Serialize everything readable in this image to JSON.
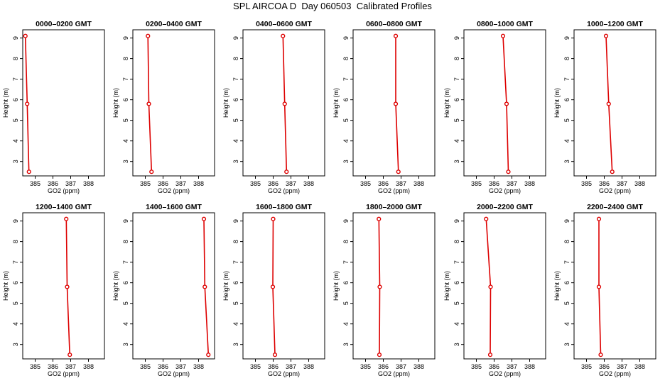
{
  "figure": {
    "title": "SPL AIRCOA D  Day 060503  Calibrated Profiles"
  },
  "chart_data": [
    {
      "type": "line",
      "title": "0000–0200 GMT",
      "xlabel": "GO2 (ppm)",
      "ylabel": "Height (m)",
      "xlim": [
        384.3,
        388.9
      ],
      "ylim": [
        2.3,
        9.4
      ],
      "xticks": [
        385,
        386,
        387,
        388
      ],
      "yticks": [
        3,
        4,
        5,
        6,
        7,
        8,
        9
      ],
      "x_tick_labels": [
        "385",
        "386",
        "387",
        "388"
      ],
      "y_tick_labels": [
        "3",
        "4",
        "5",
        "6",
        "7",
        "8",
        "9"
      ],
      "series": [
        {
          "x": [
            384.45,
            384.55,
            384.65
          ],
          "y": [
            9.1,
            5.8,
            2.5
          ]
        }
      ],
      "color": "#dd0000",
      "marker": "open-circle"
    },
    {
      "type": "line",
      "title": "0200–0400 GMT",
      "xlabel": "GO2 (ppm)",
      "ylabel": "Height (m)",
      "xlim": [
        384.3,
        388.9
      ],
      "ylim": [
        2.3,
        9.4
      ],
      "xticks": [
        385,
        386,
        387,
        388
      ],
      "yticks": [
        3,
        4,
        5,
        6,
        7,
        8,
        9
      ],
      "x_tick_labels": [
        "385",
        "386",
        "387",
        "388"
      ],
      "y_tick_labels": [
        "3",
        "4",
        "5",
        "6",
        "7",
        "8",
        "9"
      ],
      "series": [
        {
          "x": [
            385.15,
            385.2,
            385.35
          ],
          "y": [
            9.1,
            5.8,
            2.5
          ]
        }
      ],
      "color": "#dd0000",
      "marker": "open-circle"
    },
    {
      "type": "line",
      "title": "0400–0600 GMT",
      "xlabel": "GO2 (ppm)",
      "ylabel": "Height (m)",
      "xlim": [
        384.3,
        388.9
      ],
      "ylim": [
        2.3,
        9.4
      ],
      "xticks": [
        385,
        386,
        387,
        388
      ],
      "yticks": [
        3,
        4,
        5,
        6,
        7,
        8,
        9
      ],
      "x_tick_labels": [
        "385",
        "386",
        "387",
        "388"
      ],
      "y_tick_labels": [
        "3",
        "4",
        "5",
        "6",
        "7",
        "8",
        "9"
      ],
      "series": [
        {
          "x": [
            386.55,
            386.65,
            386.75
          ],
          "y": [
            9.1,
            5.8,
            2.5
          ]
        }
      ],
      "color": "#dd0000",
      "marker": "open-circle"
    },
    {
      "type": "line",
      "title": "0600–0800 GMT",
      "xlabel": "GO2 (ppm)",
      "ylabel": "Height (m)",
      "xlim": [
        384.3,
        388.9
      ],
      "ylim": [
        2.3,
        9.4
      ],
      "xticks": [
        385,
        386,
        387,
        388
      ],
      "yticks": [
        3,
        4,
        5,
        6,
        7,
        8,
        9
      ],
      "x_tick_labels": [
        "385",
        "386",
        "387",
        "388"
      ],
      "y_tick_labels": [
        "3",
        "4",
        "5",
        "6",
        "7",
        "8",
        "9"
      ],
      "series": [
        {
          "x": [
            386.7,
            386.7,
            386.85
          ],
          "y": [
            9.1,
            5.8,
            2.5
          ]
        }
      ],
      "color": "#dd0000",
      "marker": "open-circle"
    },
    {
      "type": "line",
      "title": "0800–1000 GMT",
      "xlabel": "GO2 (ppm)",
      "ylabel": "Height (m)",
      "xlim": [
        384.3,
        388.9
      ],
      "ylim": [
        2.3,
        9.4
      ],
      "xticks": [
        385,
        386,
        387,
        388
      ],
      "yticks": [
        3,
        4,
        5,
        6,
        7,
        8,
        9
      ],
      "x_tick_labels": [
        "385",
        "386",
        "387",
        "388"
      ],
      "y_tick_labels": [
        "3",
        "4",
        "5",
        "6",
        "7",
        "8",
        "9"
      ],
      "series": [
        {
          "x": [
            386.5,
            386.7,
            386.8
          ],
          "y": [
            9.1,
            5.8,
            2.5
          ]
        }
      ],
      "color": "#dd0000",
      "marker": "open-circle"
    },
    {
      "type": "line",
      "title": "1000–1200 GMT",
      "xlabel": "GO2 (ppm)",
      "ylabel": "Height (m)",
      "xlim": [
        384.3,
        388.9
      ],
      "ylim": [
        2.3,
        9.4
      ],
      "xticks": [
        385,
        386,
        387,
        388
      ],
      "yticks": [
        3,
        4,
        5,
        6,
        7,
        8,
        9
      ],
      "x_tick_labels": [
        "385",
        "386",
        "387",
        "388"
      ],
      "y_tick_labels": [
        "3",
        "4",
        "5",
        "6",
        "7",
        "8",
        "9"
      ],
      "series": [
        {
          "x": [
            386.1,
            386.25,
            386.45
          ],
          "y": [
            9.1,
            5.8,
            2.5
          ]
        }
      ],
      "color": "#dd0000",
      "marker": "open-circle"
    },
    {
      "type": "line",
      "title": "1200–1400 GMT",
      "xlabel": "GO2 (ppm)",
      "ylabel": "Height (m)",
      "xlim": [
        384.3,
        388.9
      ],
      "ylim": [
        2.3,
        9.4
      ],
      "xticks": [
        385,
        386,
        387,
        388
      ],
      "yticks": [
        3,
        4,
        5,
        6,
        7,
        8,
        9
      ],
      "x_tick_labels": [
        "385",
        "386",
        "387",
        "388"
      ],
      "y_tick_labels": [
        "3",
        "4",
        "5",
        "6",
        "7",
        "8",
        "9"
      ],
      "series": [
        {
          "x": [
            386.75,
            386.8,
            386.95
          ],
          "y": [
            9.1,
            5.8,
            2.5
          ]
        }
      ],
      "color": "#dd0000",
      "marker": "open-circle"
    },
    {
      "type": "line",
      "title": "1400–1600 GMT",
      "xlabel": "GO2 (ppm)",
      "ylabel": "Height (m)",
      "xlim": [
        384.3,
        388.9
      ],
      "ylim": [
        2.3,
        9.4
      ],
      "xticks": [
        385,
        386,
        387,
        388
      ],
      "yticks": [
        3,
        4,
        5,
        6,
        7,
        8,
        9
      ],
      "x_tick_labels": [
        "385",
        "386",
        "387",
        "388"
      ],
      "y_tick_labels": [
        "3",
        "4",
        "5",
        "6",
        "7",
        "8",
        "9"
      ],
      "series": [
        {
          "x": [
            388.3,
            388.35,
            388.55
          ],
          "y": [
            9.1,
            5.8,
            2.5
          ]
        }
      ],
      "color": "#dd0000",
      "marker": "open-circle"
    },
    {
      "type": "line",
      "title": "1600–1800 GMT",
      "xlabel": "GO2 (ppm)",
      "ylabel": "Height (m)",
      "xlim": [
        384.3,
        388.9
      ],
      "ylim": [
        2.3,
        9.4
      ],
      "xticks": [
        385,
        386,
        387,
        388
      ],
      "yticks": [
        3,
        4,
        5,
        6,
        7,
        8,
        9
      ],
      "x_tick_labels": [
        "385",
        "386",
        "387",
        "388"
      ],
      "y_tick_labels": [
        "3",
        "4",
        "5",
        "6",
        "7",
        "8",
        "9"
      ],
      "series": [
        {
          "x": [
            386.0,
            385.98,
            386.1
          ],
          "y": [
            9.1,
            5.8,
            2.5
          ]
        }
      ],
      "color": "#dd0000",
      "marker": "open-circle"
    },
    {
      "type": "line",
      "title": "1800–2000 GMT",
      "xlabel": "GO2 (ppm)",
      "ylabel": "Height (m)",
      "xlim": [
        384.3,
        388.9
      ],
      "ylim": [
        2.3,
        9.4
      ],
      "xticks": [
        385,
        386,
        387,
        388
      ],
      "yticks": [
        3,
        4,
        5,
        6,
        7,
        8,
        9
      ],
      "x_tick_labels": [
        "385",
        "386",
        "387",
        "388"
      ],
      "y_tick_labels": [
        "3",
        "4",
        "5",
        "6",
        "7",
        "8",
        "9"
      ],
      "series": [
        {
          "x": [
            385.75,
            385.8,
            385.78
          ],
          "y": [
            9.1,
            5.8,
            2.5
          ]
        }
      ],
      "color": "#dd0000",
      "marker": "open-circle"
    },
    {
      "type": "line",
      "title": "2000–2200 GMT",
      "xlabel": "GO2 (ppm)",
      "ylabel": "Height (m)",
      "xlim": [
        384.3,
        388.9
      ],
      "ylim": [
        2.3,
        9.4
      ],
      "xticks": [
        385,
        386,
        387,
        388
      ],
      "yticks": [
        3,
        4,
        5,
        6,
        7,
        8,
        9
      ],
      "x_tick_labels": [
        "385",
        "386",
        "387",
        "388"
      ],
      "y_tick_labels": [
        "3",
        "4",
        "5",
        "6",
        "7",
        "8",
        "9"
      ],
      "series": [
        {
          "x": [
            385.55,
            385.8,
            385.78
          ],
          "y": [
            9.1,
            5.8,
            2.5
          ]
        }
      ],
      "color": "#dd0000",
      "marker": "open-circle"
    },
    {
      "type": "line",
      "title": "2200–2400 GMT",
      "xlabel": "GO2 (ppm)",
      "ylabel": "Height (m)",
      "xlim": [
        384.3,
        388.9
      ],
      "ylim": [
        2.3,
        9.4
      ],
      "xticks": [
        385,
        386,
        387,
        388
      ],
      "yticks": [
        3,
        4,
        5,
        6,
        7,
        8,
        9
      ],
      "x_tick_labels": [
        "385",
        "386",
        "387",
        "388"
      ],
      "y_tick_labels": [
        "3",
        "4",
        "5",
        "6",
        "7",
        "8",
        "9"
      ],
      "series": [
        {
          "x": [
            385.7,
            385.7,
            385.8
          ],
          "y": [
            9.1,
            5.8,
            2.5
          ]
        }
      ],
      "color": "#dd0000",
      "marker": "open-circle"
    }
  ]
}
